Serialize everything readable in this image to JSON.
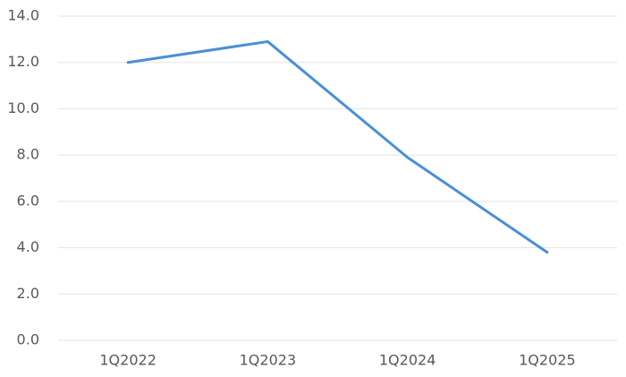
{
  "chart_data": {
    "type": "line",
    "categories": [
      "1Q2022",
      "1Q2023",
      "1Q2024",
      "1Q2025"
    ],
    "series": [
      {
        "color": "#4a8fd6",
        "values": [
          12.0,
          12.9,
          7.9,
          3.8
        ]
      }
    ],
    "ylim": [
      0,
      14
    ],
    "yticks": [
      {
        "value": 0,
        "label": "0.0"
      },
      {
        "value": 2,
        "label": "2.0"
      },
      {
        "value": 4,
        "label": "4.0"
      },
      {
        "value": 6,
        "label": "6.0"
      },
      {
        "value": 8,
        "label": "8.0"
      },
      {
        "value": 10,
        "label": "10.0"
      },
      {
        "value": 12,
        "label": "12.0"
      },
      {
        "value": 14,
        "label": "14.0"
      }
    ],
    "grid": true
  }
}
